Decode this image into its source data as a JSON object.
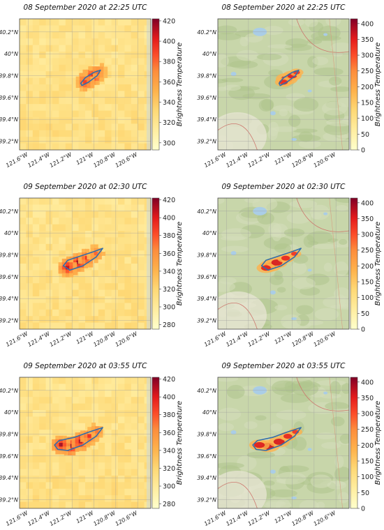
{
  "chart_data": [
    {
      "type": "heatmap",
      "title": "08 September 2020 at 22:25 UTC",
      "basemap": "satellite",
      "x_ticks": [
        "121.6°W",
        "121.4°W",
        "121.2°W",
        "121°W",
        "120.8°W",
        "120.6°W"
      ],
      "x_tick_values": [
        -121.6,
        -121.4,
        -121.2,
        -121.0,
        -120.8,
        -120.6
      ],
      "y_ticks": [
        "39.2°N",
        "39.4°N",
        "39.6°N",
        "39.8°N",
        "40°N",
        "40.2°N"
      ],
      "y_tick_values": [
        39.2,
        39.4,
        39.6,
        39.8,
        40.0,
        40.2
      ],
      "xlim": [
        -121.68,
        -120.48
      ],
      "ylim": [
        39.12,
        40.32
      ],
      "colorbar": {
        "label": "Brightness Temperature",
        "ticks": [
          "300",
          "320",
          "340",
          "360",
          "380",
          "400",
          "420"
        ],
        "range": [
          293,
          422
        ]
      },
      "fire_perimeter": [
        [
          -121.12,
          39.73
        ],
        [
          -121.08,
          39.78
        ],
        [
          -121.0,
          39.83
        ],
        [
          -120.94,
          39.85
        ],
        [
          -120.97,
          39.8
        ],
        [
          -121.05,
          39.74
        ],
        [
          -121.11,
          39.71
        ]
      ],
      "hotspots": [
        {
          "lon": -121.05,
          "lat": 39.77,
          "intensity": 1.0
        },
        {
          "lon": -121.0,
          "lat": 39.8,
          "intensity": 0.85
        },
        {
          "lon": -121.08,
          "lat": 39.74,
          "intensity": 0.7
        },
        {
          "lon": -120.96,
          "lat": 39.83,
          "intensity": 0.55
        }
      ]
    },
    {
      "type": "heatmap",
      "title": "08 September 2020 at 22:25 UTC",
      "basemap": "terrain",
      "x_ticks": [
        "121.6°W",
        "121.4°W",
        "121.2°W",
        "121°W",
        "120.8°W",
        "120.6°W"
      ],
      "x_tick_values": [
        -121.6,
        -121.4,
        -121.2,
        -121.0,
        -120.8,
        -120.6
      ],
      "y_ticks": [
        "39.2°N",
        "39.4°N",
        "39.6°N",
        "39.8°N",
        "40°N",
        "40.2°N"
      ],
      "y_tick_values": [
        39.2,
        39.4,
        39.6,
        39.8,
        40.0,
        40.2
      ],
      "xlim": [
        -121.68,
        -120.48
      ],
      "ylim": [
        39.12,
        40.32
      ],
      "colorbar": {
        "label": "Brightness Temperature",
        "ticks": [
          "0",
          "50",
          "100",
          "150",
          "200",
          "250",
          "300",
          "350",
          "400"
        ],
        "range": [
          0,
          415
        ]
      },
      "fire_perimeter": [
        [
          -121.12,
          39.73
        ],
        [
          -121.08,
          39.78
        ],
        [
          -121.0,
          39.83
        ],
        [
          -120.94,
          39.85
        ],
        [
          -120.97,
          39.8
        ],
        [
          -121.05,
          39.74
        ],
        [
          -121.11,
          39.71
        ]
      ],
      "hotspots": [
        {
          "lon": -121.05,
          "lat": 39.77,
          "intensity": 0.9
        },
        {
          "lon": -121.0,
          "lat": 39.8,
          "intensity": 0.7
        },
        {
          "lon": -121.08,
          "lat": 39.74,
          "intensity": 0.6
        },
        {
          "lon": -120.96,
          "lat": 39.83,
          "intensity": 0.4
        }
      ]
    },
    {
      "type": "heatmap",
      "title": "09 September 2020 at 02:30 UTC",
      "basemap": "satellite",
      "x_ticks": [
        "121.6°W",
        "121.4°W",
        "121.2°W",
        "121°W",
        "120.8°W",
        "120.6°W"
      ],
      "x_tick_values": [
        -121.6,
        -121.4,
        -121.2,
        -121.0,
        -120.8,
        -120.6
      ],
      "y_ticks": [
        "39.2°N",
        "39.4°N",
        "39.6°N",
        "39.8°N",
        "40°N",
        "40.2°N"
      ],
      "y_tick_values": [
        39.2,
        39.4,
        39.6,
        39.8,
        40.0,
        40.2
      ],
      "xlim": [
        -121.68,
        -120.48
      ],
      "ylim": [
        39.12,
        40.32
      ],
      "colorbar": {
        "label": "Brightness Temperature",
        "ticks": [
          "280",
          "300",
          "320",
          "340",
          "360",
          "380",
          "400",
          "420"
        ],
        "range": [
          275,
          422
        ]
      },
      "fire_perimeter": [
        [
          -121.28,
          39.7
        ],
        [
          -121.24,
          39.75
        ],
        [
          -121.12,
          39.79
        ],
        [
          -121.0,
          39.83
        ],
        [
          -120.92,
          39.86
        ],
        [
          -120.98,
          39.78
        ],
        [
          -121.1,
          39.7
        ],
        [
          -121.22,
          39.66
        ]
      ],
      "hotspots": [
        {
          "lon": -121.2,
          "lat": 39.7,
          "intensity": 1.0
        },
        {
          "lon": -121.14,
          "lat": 39.73,
          "intensity": 0.95
        },
        {
          "lon": -121.24,
          "lat": 39.68,
          "intensity": 0.85
        },
        {
          "lon": -121.06,
          "lat": 39.77,
          "intensity": 0.7
        },
        {
          "lon": -120.98,
          "lat": 39.81,
          "intensity": 0.5
        }
      ]
    },
    {
      "type": "heatmap",
      "title": "09 September 2020 at 02:30 UTC",
      "basemap": "terrain",
      "x_ticks": [
        "121.6°W",
        "121.4°W",
        "121.2°W",
        "121°W",
        "120.8°W",
        "120.6°W"
      ],
      "x_tick_values": [
        -121.6,
        -121.4,
        -121.2,
        -121.0,
        -120.8,
        -120.6
      ],
      "y_ticks": [
        "39.2°N",
        "39.4°N",
        "39.6°N",
        "39.8°N",
        "40°N",
        "40.2°N"
      ],
      "y_tick_values": [
        39.2,
        39.4,
        39.6,
        39.8,
        40.0,
        40.2
      ],
      "xlim": [
        -121.68,
        -120.48
      ],
      "ylim": [
        39.12,
        40.32
      ],
      "colorbar": {
        "label": "Brightness Temperature",
        "ticks": [
          "0",
          "50",
          "100",
          "150",
          "200",
          "250",
          "300",
          "350",
          "400"
        ],
        "range": [
          0,
          415
        ]
      },
      "fire_perimeter": [
        [
          -121.28,
          39.7
        ],
        [
          -121.24,
          39.75
        ],
        [
          -121.12,
          39.79
        ],
        [
          -121.0,
          39.83
        ],
        [
          -120.92,
          39.86
        ],
        [
          -120.98,
          39.78
        ],
        [
          -121.1,
          39.7
        ],
        [
          -121.22,
          39.66
        ]
      ],
      "hotspots": [
        {
          "lon": -121.2,
          "lat": 39.7,
          "intensity": 0.9
        },
        {
          "lon": -121.14,
          "lat": 39.73,
          "intensity": 0.85
        },
        {
          "lon": -121.24,
          "lat": 39.68,
          "intensity": 0.7
        },
        {
          "lon": -121.06,
          "lat": 39.77,
          "intensity": 0.6
        },
        {
          "lon": -120.98,
          "lat": 39.81,
          "intensity": 0.4
        }
      ]
    },
    {
      "type": "heatmap",
      "title": "09 September 2020 at 03:55 UTC",
      "basemap": "satellite",
      "x_ticks": [
        "121.6°W",
        "121.4°W",
        "121.2°W",
        "121°W",
        "120.8°W",
        "120.6°W"
      ],
      "x_tick_values": [
        -121.6,
        -121.4,
        -121.2,
        -121.0,
        -120.8,
        -120.6
      ],
      "y_ticks": [
        "39.2°N",
        "39.4°N",
        "39.6°N",
        "39.8°N",
        "40°N",
        "40.2°N"
      ],
      "y_tick_values": [
        39.2,
        39.4,
        39.6,
        39.8,
        40.0,
        40.2
      ],
      "xlim": [
        -121.68,
        -120.48
      ],
      "ylim": [
        39.12,
        40.32
      ],
      "colorbar": {
        "label": "Brightness Temperature",
        "ticks": [
          "280",
          "300",
          "320",
          "340",
          "360",
          "380",
          "400",
          "420"
        ],
        "range": [
          275,
          422
        ]
      },
      "fire_perimeter": [
        [
          -121.36,
          39.7
        ],
        [
          -121.32,
          39.74
        ],
        [
          -121.18,
          39.77
        ],
        [
          -121.04,
          39.82
        ],
        [
          -120.92,
          39.86
        ],
        [
          -120.98,
          39.78
        ],
        [
          -121.1,
          39.7
        ],
        [
          -121.24,
          39.65
        ],
        [
          -121.33,
          39.66
        ]
      ],
      "hotspots": [
        {
          "lon": -121.22,
          "lat": 39.69,
          "intensity": 1.0
        },
        {
          "lon": -121.3,
          "lat": 39.7,
          "intensity": 0.9
        },
        {
          "lon": -121.12,
          "lat": 39.73,
          "intensity": 0.9
        },
        {
          "lon": -121.04,
          "lat": 39.78,
          "intensity": 0.7
        },
        {
          "lon": -120.97,
          "lat": 39.82,
          "intensity": 0.5
        }
      ]
    },
    {
      "type": "heatmap",
      "title": "09 September 2020 at 03:55 UTC",
      "basemap": "terrain",
      "x_ticks": [
        "121.6°W",
        "121.4°W",
        "121.2°W",
        "121°W",
        "120.8°W",
        "120.6°W"
      ],
      "x_tick_values": [
        -121.6,
        -121.4,
        -121.2,
        -121.0,
        -120.8,
        -120.6
      ],
      "y_ticks": [
        "39.2°N",
        "39.4°N",
        "39.6°N",
        "39.8°N",
        "40°N",
        "40.2°N"
      ],
      "y_tick_values": [
        39.2,
        39.4,
        39.6,
        39.8,
        40.0,
        40.2
      ],
      "xlim": [
        -121.68,
        -120.48
      ],
      "ylim": [
        39.12,
        40.32
      ],
      "colorbar": {
        "label": "Brightness Temperature",
        "ticks": [
          "0",
          "50",
          "100",
          "150",
          "200",
          "250",
          "300",
          "350",
          "400"
        ],
        "range": [
          0,
          415
        ]
      },
      "fire_perimeter": [
        [
          -121.36,
          39.7
        ],
        [
          -121.32,
          39.74
        ],
        [
          -121.18,
          39.77
        ],
        [
          -121.04,
          39.82
        ],
        [
          -120.92,
          39.86
        ],
        [
          -120.98,
          39.78
        ],
        [
          -121.1,
          39.7
        ],
        [
          -121.24,
          39.65
        ],
        [
          -121.33,
          39.66
        ]
      ],
      "hotspots": [
        {
          "lon": -121.22,
          "lat": 39.69,
          "intensity": 0.95
        },
        {
          "lon": -121.3,
          "lat": 39.7,
          "intensity": 0.8
        },
        {
          "lon": -121.12,
          "lat": 39.73,
          "intensity": 0.85
        },
        {
          "lon": -121.04,
          "lat": 39.78,
          "intensity": 0.6
        },
        {
          "lon": -120.97,
          "lat": 39.82,
          "intensity": 0.4
        }
      ]
    }
  ]
}
